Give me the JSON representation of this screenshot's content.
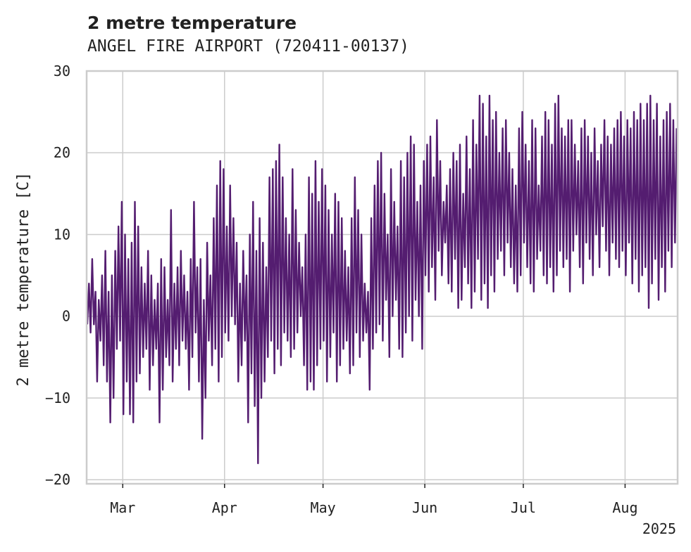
{
  "chart_data": {
    "type": "line",
    "title": "2 metre temperature",
    "subtitle": "ANGEL FIRE AIRPORT (720411-00137)",
    "ylabel": "2 metre temperature [C]",
    "xlabel": "",
    "x_range": [
      "2025-02-18",
      "2025-08-16"
    ],
    "ylim": [
      -20.5,
      30
    ],
    "yticks": [
      -20,
      -10,
      0,
      10,
      20,
      30
    ],
    "xticks": [
      {
        "date": "2025-03-01",
        "label": "Mar"
      },
      {
        "date": "2025-04-01",
        "label": "Apr"
      },
      {
        "date": "2025-05-01",
        "label": "May"
      },
      {
        "date": "2025-06-01",
        "label": "Jun"
      },
      {
        "date": "2025-07-01",
        "label": "Jul"
      },
      {
        "date": "2025-08-01",
        "label": "Aug"
      }
    ],
    "x_year_label": "2025",
    "grid": true,
    "line_color": "#541d70",
    "series": [
      {
        "name": "",
        "daily_min_max": [
          [
            "2025-02-18",
            -1,
            4
          ],
          [
            "2025-02-19",
            -2,
            7
          ],
          [
            "2025-02-20",
            -1,
            3
          ],
          [
            "2025-02-21",
            -8,
            2
          ],
          [
            "2025-02-22",
            -3,
            5
          ],
          [
            "2025-02-23",
            -6,
            8
          ],
          [
            "2025-02-24",
            -8,
            3
          ],
          [
            "2025-02-25",
            -13,
            5
          ],
          [
            "2025-02-26",
            -10,
            8
          ],
          [
            "2025-02-27",
            -4,
            11
          ],
          [
            "2025-02-28",
            -3,
            14
          ],
          [
            "2025-03-01",
            -12,
            10
          ],
          [
            "2025-03-02",
            -8,
            7
          ],
          [
            "2025-03-03",
            -12,
            9
          ],
          [
            "2025-03-04",
            -13,
            14
          ],
          [
            "2025-03-05",
            -8,
            11
          ],
          [
            "2025-03-06",
            -7,
            6
          ],
          [
            "2025-03-07",
            -5,
            4
          ],
          [
            "2025-03-08",
            -4,
            8
          ],
          [
            "2025-03-09",
            -9,
            5
          ],
          [
            "2025-03-10",
            -6,
            2
          ],
          [
            "2025-03-11",
            -4,
            4
          ],
          [
            "2025-03-12",
            -13,
            7
          ],
          [
            "2025-03-13",
            -9,
            6
          ],
          [
            "2025-03-14",
            -5,
            2
          ],
          [
            "2025-03-15",
            -6,
            13
          ],
          [
            "2025-03-16",
            -8,
            4
          ],
          [
            "2025-03-17",
            -4,
            6
          ],
          [
            "2025-03-18",
            -6,
            8
          ],
          [
            "2025-03-19",
            -3,
            5
          ],
          [
            "2025-03-20",
            -4,
            3
          ],
          [
            "2025-03-21",
            -9,
            7
          ],
          [
            "2025-03-22",
            -5,
            14
          ],
          [
            "2025-03-23",
            -2,
            6
          ],
          [
            "2025-03-24",
            -8,
            7
          ],
          [
            "2025-03-25",
            -15,
            2
          ],
          [
            "2025-03-26",
            -10,
            9
          ],
          [
            "2025-03-27",
            -3,
            5
          ],
          [
            "2025-03-28",
            -6,
            12
          ],
          [
            "2025-03-29",
            -4,
            16
          ],
          [
            "2025-03-30",
            -8,
            19
          ],
          [
            "2025-03-31",
            -5,
            18
          ],
          [
            "2025-04-01",
            -2,
            11
          ],
          [
            "2025-04-02",
            -3,
            16
          ],
          [
            "2025-04-03",
            0,
            12
          ],
          [
            "2025-04-04",
            -1,
            9
          ],
          [
            "2025-04-05",
            -8,
            4
          ],
          [
            "2025-04-06",
            -6,
            8
          ],
          [
            "2025-04-07",
            -3,
            5
          ],
          [
            "2025-04-08",
            -13,
            10
          ],
          [
            "2025-04-09",
            -7,
            14
          ],
          [
            "2025-04-10",
            -11,
            8
          ],
          [
            "2025-04-11",
            -18,
            12
          ],
          [
            "2025-04-12",
            -10,
            9
          ],
          [
            "2025-04-13",
            -8,
            6
          ],
          [
            "2025-04-14",
            -5,
            17
          ],
          [
            "2025-04-15",
            -3,
            18
          ],
          [
            "2025-04-16",
            -7,
            19
          ],
          [
            "2025-04-17",
            -4,
            21
          ],
          [
            "2025-04-18",
            -6,
            17
          ],
          [
            "2025-04-19",
            -2,
            12
          ],
          [
            "2025-04-20",
            -3,
            10
          ],
          [
            "2025-04-21",
            -5,
            18
          ],
          [
            "2025-04-22",
            -4,
            13
          ],
          [
            "2025-04-23",
            -2,
            9
          ],
          [
            "2025-04-24",
            0,
            6
          ],
          [
            "2025-04-25",
            -6,
            10
          ],
          [
            "2025-04-26",
            -9,
            17
          ],
          [
            "2025-04-27",
            -8,
            15
          ],
          [
            "2025-04-28",
            -9,
            19
          ],
          [
            "2025-04-29",
            -6,
            14
          ],
          [
            "2025-04-30",
            -4,
            18
          ],
          [
            "2025-05-01",
            -3,
            16
          ],
          [
            "2025-05-02",
            -8,
            13
          ],
          [
            "2025-05-03",
            -5,
            10
          ],
          [
            "2025-05-04",
            -2,
            15
          ],
          [
            "2025-05-05",
            -8,
            14
          ],
          [
            "2025-05-06",
            -6,
            12
          ],
          [
            "2025-05-07",
            -4,
            8
          ],
          [
            "2025-05-08",
            -3,
            6
          ],
          [
            "2025-05-09",
            -7,
            12
          ],
          [
            "2025-05-10",
            -6,
            17
          ],
          [
            "2025-05-11",
            -2,
            13
          ],
          [
            "2025-05-12",
            -5,
            10
          ],
          [
            "2025-05-13",
            -3,
            4
          ],
          [
            "2025-05-14",
            -2,
            3
          ],
          [
            "2025-05-15",
            -9,
            12
          ],
          [
            "2025-05-16",
            -4,
            16
          ],
          [
            "2025-05-17",
            -2,
            19
          ],
          [
            "2025-05-18",
            -1,
            20
          ],
          [
            "2025-05-19",
            -3,
            15
          ],
          [
            "2025-05-20",
            2,
            10
          ],
          [
            "2025-05-21",
            -5,
            18
          ],
          [
            "2025-05-22",
            0,
            14
          ],
          [
            "2025-05-23",
            2,
            11
          ],
          [
            "2025-05-24",
            -4,
            19
          ],
          [
            "2025-05-25",
            -5,
            17
          ],
          [
            "2025-05-26",
            -2,
            20
          ],
          [
            "2025-05-27",
            0,
            22
          ],
          [
            "2025-05-28",
            -3,
            21
          ],
          [
            "2025-05-29",
            2,
            14
          ],
          [
            "2025-05-30",
            0,
            16
          ],
          [
            "2025-05-31",
            -4,
            19
          ],
          [
            "2025-06-01",
            5,
            21
          ],
          [
            "2025-06-02",
            3,
            22
          ],
          [
            "2025-06-03",
            6,
            17
          ],
          [
            "2025-06-04",
            2,
            24
          ],
          [
            "2025-06-05",
            8,
            19
          ],
          [
            "2025-06-06",
            5,
            14
          ],
          [
            "2025-06-07",
            9,
            16
          ],
          [
            "2025-06-08",
            4,
            18
          ],
          [
            "2025-06-09",
            3,
            20
          ],
          [
            "2025-06-10",
            7,
            19
          ],
          [
            "2025-06-11",
            1,
            21
          ],
          [
            "2025-06-12",
            2,
            15
          ],
          [
            "2025-06-13",
            6,
            22
          ],
          [
            "2025-06-14",
            4,
            18
          ],
          [
            "2025-06-15",
            1,
            24
          ],
          [
            "2025-06-16",
            3,
            21
          ],
          [
            "2025-06-17",
            7,
            27
          ],
          [
            "2025-06-18",
            2,
            26
          ],
          [
            "2025-06-19",
            4,
            22
          ],
          [
            "2025-06-20",
            1,
            27
          ],
          [
            "2025-06-21",
            5,
            24
          ],
          [
            "2025-06-22",
            3,
            25
          ],
          [
            "2025-06-23",
            7,
            20
          ],
          [
            "2025-06-24",
            8,
            23
          ],
          [
            "2025-06-25",
            5,
            24
          ],
          [
            "2025-06-26",
            9,
            20
          ],
          [
            "2025-06-27",
            6,
            18
          ],
          [
            "2025-06-28",
            4,
            16
          ],
          [
            "2025-06-29",
            3,
            23
          ],
          [
            "2025-06-30",
            5,
            25
          ],
          [
            "2025-07-01",
            9,
            21
          ],
          [
            "2025-07-02",
            6,
            19
          ],
          [
            "2025-07-03",
            4,
            24
          ],
          [
            "2025-07-04",
            3,
            23
          ],
          [
            "2025-07-05",
            7,
            16
          ],
          [
            "2025-07-06",
            8,
            22
          ],
          [
            "2025-07-07",
            5,
            25
          ],
          [
            "2025-07-08",
            4,
            24
          ],
          [
            "2025-07-09",
            6,
            21
          ],
          [
            "2025-07-10",
            3,
            26
          ],
          [
            "2025-07-11",
            5,
            27
          ],
          [
            "2025-07-12",
            8,
            23
          ],
          [
            "2025-07-13",
            6,
            22
          ],
          [
            "2025-07-14",
            7,
            24
          ],
          [
            "2025-07-15",
            3,
            24
          ],
          [
            "2025-07-16",
            8,
            21
          ],
          [
            "2025-07-17",
            10,
            19
          ],
          [
            "2025-07-18",
            6,
            23
          ],
          [
            "2025-07-19",
            4,
            24
          ],
          [
            "2025-07-20",
            9,
            22
          ],
          [
            "2025-07-21",
            7,
            20
          ],
          [
            "2025-07-22",
            5,
            23
          ],
          [
            "2025-07-23",
            10,
            19
          ],
          [
            "2025-07-24",
            6,
            21
          ],
          [
            "2025-07-25",
            11,
            24
          ],
          [
            "2025-07-26",
            8,
            22
          ],
          [
            "2025-07-27",
            5,
            21
          ],
          [
            "2025-07-28",
            9,
            23
          ],
          [
            "2025-07-29",
            7,
            24
          ],
          [
            "2025-07-30",
            6,
            25
          ],
          [
            "2025-07-31",
            8,
            22
          ],
          [
            "2025-08-01",
            5,
            24
          ],
          [
            "2025-08-02",
            9,
            23
          ],
          [
            "2025-08-03",
            4,
            25
          ],
          [
            "2025-08-04",
            7,
            24
          ],
          [
            "2025-08-05",
            3,
            26
          ],
          [
            "2025-08-06",
            5,
            24
          ],
          [
            "2025-08-07",
            6,
            26
          ],
          [
            "2025-08-08",
            1,
            27
          ],
          [
            "2025-08-09",
            4,
            24
          ],
          [
            "2025-08-10",
            7,
            26
          ],
          [
            "2025-08-11",
            2,
            22
          ],
          [
            "2025-08-12",
            6,
            24
          ],
          [
            "2025-08-13",
            3,
            25
          ],
          [
            "2025-08-14",
            8,
            26
          ],
          [
            "2025-08-15",
            6,
            24
          ],
          [
            "2025-08-16",
            9,
            23
          ]
        ]
      }
    ]
  }
}
